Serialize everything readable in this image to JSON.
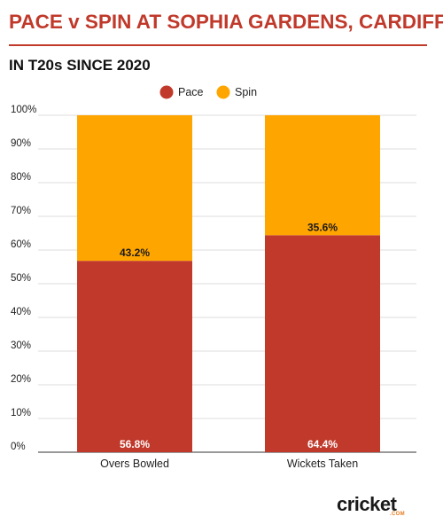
{
  "header": {
    "title": "PACE v SPIN AT SOPHIA GARDENS, CARDIFF",
    "subtitle": "IN T20s SINCE 2020"
  },
  "logo": {
    "text": "cricket",
    "sub": ".COM"
  },
  "colors": {
    "title": "#c0392b",
    "pace": "#c0392b",
    "spin": "#ffa500",
    "grid": "#dddddd",
    "text": "#222222"
  },
  "chart_data": {
    "type": "bar",
    "stacked": true,
    "categories": [
      "Overs Bowled",
      "Wickets Taken"
    ],
    "series": [
      {
        "name": "Pace",
        "values": [
          56.8,
          64.4
        ],
        "labels": [
          "56.8%",
          "64.4%"
        ]
      },
      {
        "name": "Spin",
        "values": [
          43.2,
          35.6
        ],
        "labels": [
          "43.2%",
          "35.6%"
        ]
      }
    ],
    "ylim": [
      0,
      100
    ],
    "yticks": [
      "0%",
      "10%",
      "20%",
      "30%",
      "40%",
      "50%",
      "60%",
      "70%",
      "80%",
      "90%",
      "100%"
    ],
    "legend_position": "top-center",
    "grid": true
  }
}
